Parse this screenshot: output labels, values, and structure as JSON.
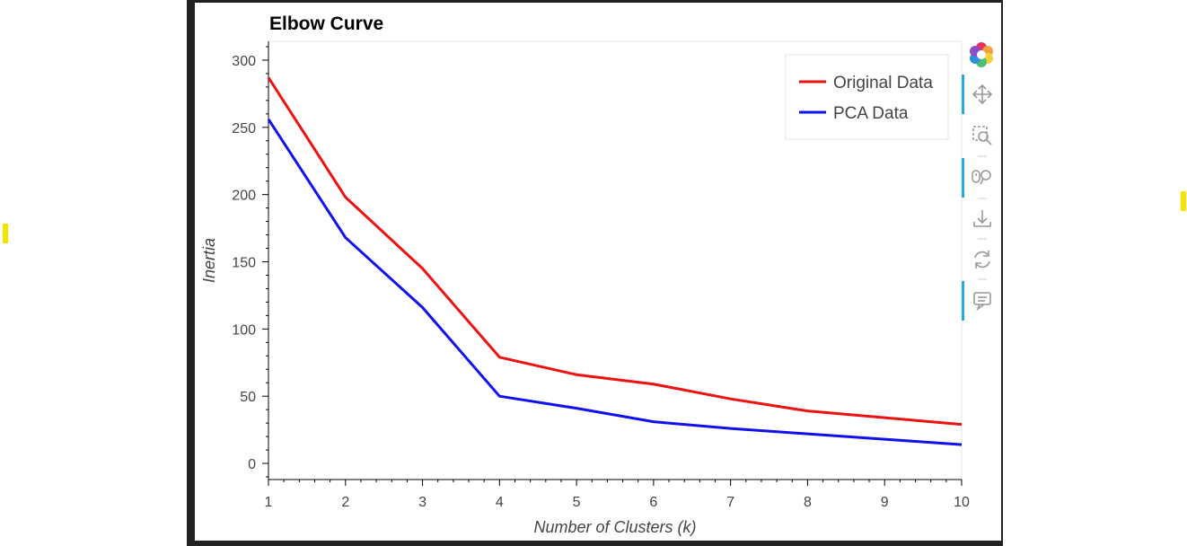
{
  "chart_data": {
    "type": "line",
    "title": "Elbow Curve",
    "xlabel": "Number of Clusters (k)",
    "ylabel": "Inertia",
    "x": [
      1,
      2,
      3,
      4,
      5,
      6,
      7,
      8,
      9,
      10
    ],
    "xticks": [
      "1",
      "2",
      "3",
      "4",
      "5",
      "6",
      "7",
      "8",
      "9",
      "10"
    ],
    "yticks": [
      "0",
      "50",
      "100",
      "150",
      "200",
      "250",
      "300"
    ],
    "xlim": [
      1,
      10
    ],
    "ylim": [
      -12,
      314
    ],
    "grid": false,
    "legend_position": "top-right",
    "series": [
      {
        "name": "Original Data",
        "color": "#ee1111",
        "values": [
          287,
          198,
          145,
          79,
          66,
          59,
          48,
          39,
          34,
          29
        ]
      },
      {
        "name": "PCA Data",
        "color": "#1111ee",
        "values": [
          256,
          168,
          116,
          50,
          41,
          31,
          26,
          22,
          18,
          14
        ]
      }
    ]
  },
  "toolbar": {
    "tools": [
      {
        "name": "bokeh-logo-icon",
        "active": false
      },
      {
        "name": "pan-icon",
        "active": true
      },
      {
        "name": "box-zoom-icon",
        "active": false
      },
      {
        "name": "wheel-zoom-icon",
        "active": true
      },
      {
        "name": "save-icon",
        "active": false
      },
      {
        "name": "reset-icon",
        "active": false
      },
      {
        "name": "hover-icon",
        "active": true
      }
    ],
    "accent": "#26aae1"
  }
}
